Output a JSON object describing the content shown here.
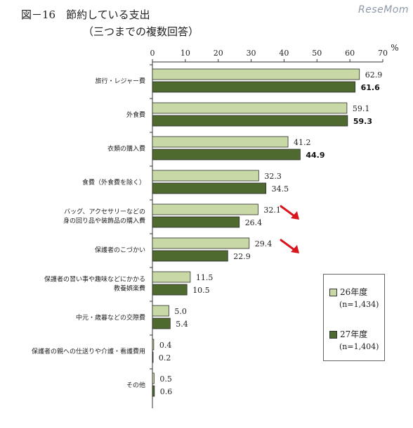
{
  "header": {
    "title": "図－16　節約している支出",
    "subtitle": "（三つまでの複数回答）",
    "watermark": "ReseMom"
  },
  "legend": {
    "items": [
      {
        "label": "26年度",
        "n": "(n=1,434)",
        "color": "#c8d9a6"
      },
      {
        "label": "27年度",
        "n": "(n=1,404)",
        "color": "#4e6a2e"
      }
    ]
  },
  "chart_data": {
    "type": "bar",
    "orientation": "horizontal",
    "unit": "%",
    "xlim": [
      0,
      70
    ],
    "xticks": [
      0,
      10,
      20,
      30,
      40,
      50,
      60,
      70
    ],
    "categories": [
      [
        "旅行・レジャー費"
      ],
      [
        "外食費"
      ],
      [
        "衣類の購入費"
      ],
      [
        "食費（外食費を除く）"
      ],
      [
        "バッグ、アクセサリーなどの",
        "身の回り品や装飾品の購入費"
      ],
      [
        "保護者のこづかい"
      ],
      [
        "保護者の習い事や趣味などにかかる",
        "教養娯楽費"
      ],
      [
        "中元・歳暮などの交際費"
      ],
      [
        "保護者の親への仕送りや介護・看護費用"
      ],
      [
        "その他"
      ]
    ],
    "series": [
      {
        "name": "26年度",
        "values": [
          62.9,
          59.1,
          41.2,
          32.3,
          32.1,
          29.4,
          11.5,
          5.0,
          0.4,
          0.5
        ],
        "labels": [
          "62.9",
          "59.1",
          "41.2",
          "32.3",
          "32.1",
          "29.4",
          "11.5",
          "5.0",
          "0.4",
          "0.5"
        ],
        "color": "#c8d9a6"
      },
      {
        "name": "27年度",
        "values": [
          61.6,
          59.3,
          44.9,
          34.5,
          26.4,
          22.9,
          10.5,
          5.4,
          0.2,
          0.6
        ],
        "labels": [
          "61.6",
          "59.3",
          "44.9",
          "34.5",
          "26.4",
          "22.9",
          "10.5",
          "5.4",
          "0.2",
          "0.6"
        ],
        "color": "#4e6a2e",
        "bold_labels_for_first": 3
      }
    ],
    "annotations": [
      {
        "type": "down-arrow",
        "category_index": 4,
        "color": "#d8141c"
      },
      {
        "type": "down-arrow",
        "category_index": 5,
        "color": "#d8141c"
      }
    ],
    "grid": false,
    "legend_position": "bottom-right"
  }
}
